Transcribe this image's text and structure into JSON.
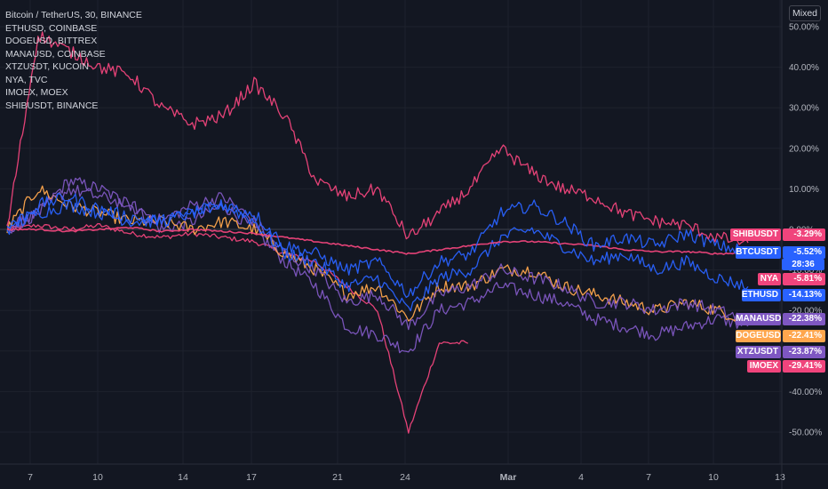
{
  "header": {
    "legend": [
      "Bitcoin / TetherUS, 30, BINANCE",
      "ETHUSD, COINBASE",
      "DOGEUSD, BITTREX",
      "MANAUSD, COINBASE",
      "XTZUSDT, KUCOIN",
      "NYA, TVC",
      "IMOEX, MOEX",
      "SHIBUSDT, BINANCE"
    ],
    "scale_mode": "Mixed",
    "countdown": "28:36"
  },
  "colors": {
    "background": "#131722",
    "grid": "#1e222d",
    "text": "#b2b5be",
    "pink": "#f0447c",
    "blue": "#2962ff",
    "orange": "#ffa64d",
    "purple": "#7e57c2"
  },
  "chart_data": {
    "type": "line",
    "y_unit": "%",
    "ylim": [
      -55,
      55
    ],
    "y_ticks": [
      50,
      40,
      30,
      20,
      10,
      0,
      -10,
      -20,
      -30,
      -40,
      -50
    ],
    "y_tick_labels": [
      "50.00%",
      "40.00%",
      "30.00%",
      "20.00%",
      "10.00%",
      "0.00%",
      "-10.00%",
      "-20.00%",
      "-30.00%",
      "-40.00%",
      "-50.00%"
    ],
    "x_ticks": [
      "7",
      "10",
      "14",
      "17",
      "21",
      "24",
      "Mar",
      "4",
      "7",
      "10",
      "13"
    ],
    "x": [
      "7",
      "8",
      "9",
      "10",
      "11",
      "14",
      "15",
      "16",
      "17",
      "18",
      "21",
      "22",
      "23",
      "24",
      "25",
      "28",
      "Mar",
      "2",
      "3",
      "4",
      "7",
      "8",
      "9",
      "10",
      "11"
    ],
    "grid": true,
    "legend_position": "top-left",
    "series": [
      {
        "name": "SHIBUSDT",
        "label": "SHIBUSDT",
        "value_label": "-3.29%",
        "color": "#f0447c",
        "final": -3.29,
        "values": [
          0,
          48,
          44,
          40,
          38,
          30,
          26,
          28,
          36,
          28,
          12,
          8,
          10,
          -2,
          4,
          10,
          20,
          14,
          10,
          8,
          4,
          2,
          1,
          -2,
          -3.29
        ]
      },
      {
        "name": "BTCUSDT",
        "label": "BTCUSDT",
        "value_label": "-5.52%",
        "color": "#2962ff",
        "final": -5.52,
        "values": [
          0,
          6,
          8,
          5,
          3,
          2,
          4,
          6,
          4,
          -4,
          -6,
          -10,
          -8,
          -16,
          -8,
          -6,
          4,
          6,
          2,
          -4,
          -2,
          -4,
          -1,
          -4,
          -5.52
        ]
      },
      {
        "name": "NYA",
        "label": "NYA",
        "value_label": "-5.81%",
        "color": "#f0447c",
        "final": -5.81,
        "values": [
          0,
          0,
          -0.5,
          0,
          0.5,
          -0.5,
          0,
          -0.5,
          -1,
          -2,
          -3,
          -4,
          -5,
          -6,
          -5,
          -4,
          -3,
          -3,
          -3.5,
          -4,
          -5,
          -5.5,
          -5.5,
          -6,
          -5.81
        ]
      },
      {
        "name": "ETHUSD",
        "label": "ETHUSD",
        "value_label": "-14.13%",
        "color": "#2962ff",
        "final": -14.13,
        "values": [
          0,
          4,
          6,
          4,
          2,
          2,
          4,
          6,
          2,
          -6,
          -8,
          -14,
          -12,
          -20,
          -12,
          -10,
          -2,
          0,
          -4,
          -8,
          -6,
          -10,
          -8,
          -12,
          -14.13
        ]
      },
      {
        "name": "MANAUSD",
        "label": "MANAUSD",
        "value_label": "-22.38%",
        "color": "#7e57c2",
        "final": -22.38,
        "values": [
          0,
          4,
          10,
          8,
          6,
          2,
          6,
          8,
          2,
          -6,
          -10,
          -18,
          -16,
          -24,
          -16,
          -14,
          -10,
          -12,
          -14,
          -18,
          -18,
          -20,
          -18,
          -20,
          -22.38
        ]
      },
      {
        "name": "DOGEUSD",
        "label": "DOGEUSD",
        "value_label": "-22.41%",
        "color": "#ffa64d",
        "final": -22.41,
        "values": [
          0,
          10,
          6,
          4,
          2,
          2,
          0,
          2,
          0,
          -6,
          -10,
          -16,
          -14,
          -22,
          -14,
          -14,
          -10,
          -10,
          -14,
          -16,
          -18,
          -20,
          -18,
          -20,
          -22.41
        ]
      },
      {
        "name": "XTZUSDT",
        "label": "XTZUSDT",
        "value_label": "-23.87%",
        "color": "#7e57c2",
        "final": -23.87,
        "values": [
          0,
          4,
          12,
          10,
          6,
          0,
          2,
          6,
          0,
          -8,
          -14,
          -24,
          -26,
          -30,
          -20,
          -18,
          -14,
          -16,
          -18,
          -22,
          -24,
          -26,
          -24,
          -22,
          -23.87
        ]
      },
      {
        "name": "IMOEX",
        "label": "IMOEX",
        "value_label": "-29.41%",
        "color": "#f0447c",
        "final": -29.41,
        "values": [
          0,
          1,
          0,
          1,
          -1,
          -2,
          -1,
          -2,
          -3,
          -6,
          -8,
          -14,
          -20,
          -50,
          -28,
          -28,
          null,
          null,
          null,
          null,
          null,
          null,
          null,
          null,
          -29.41
        ]
      }
    ]
  }
}
